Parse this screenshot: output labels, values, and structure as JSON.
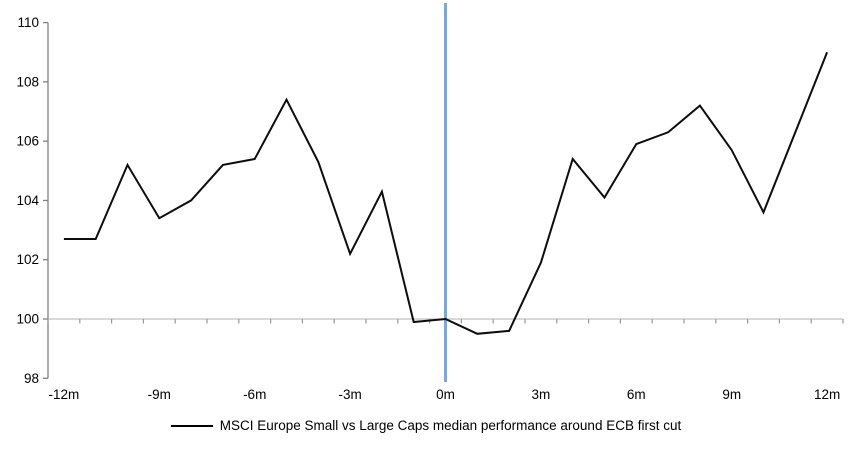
{
  "chart_data": {
    "type": "line",
    "title": "",
    "xlabel": "",
    "ylabel": "",
    "x": [
      -12,
      -11,
      -10,
      -9,
      -8,
      -7,
      -6,
      -5,
      -4,
      -3,
      -2,
      -1,
      0,
      1,
      2,
      3,
      4,
      5,
      6,
      7,
      8,
      9,
      10,
      11,
      12
    ],
    "series": [
      {
        "name": "MSCI Europe Small vs Large Caps median performance around ECB first cut",
        "values": [
          102.7,
          102.7,
          105.2,
          103.4,
          104.0,
          105.2,
          105.4,
          107.4,
          105.3,
          102.2,
          104.3,
          99.9,
          100.0,
          99.5,
          99.6,
          101.9,
          105.4,
          104.1,
          105.9,
          106.3,
          107.2,
          105.7,
          103.6,
          106.3,
          109.0
        ]
      }
    ],
    "ylim": [
      98,
      110
    ],
    "yticks": [
      98,
      100,
      102,
      104,
      106,
      108,
      110
    ],
    "x_tick_labels": [
      {
        "pos": -12,
        "label": "-12m"
      },
      {
        "pos": -9,
        "label": "-9m"
      },
      {
        "pos": -6,
        "label": "-6m"
      },
      {
        "pos": -3,
        "label": "-3m"
      },
      {
        "pos": 0,
        "label": "0m"
      },
      {
        "pos": 3,
        "label": "3m"
      },
      {
        "pos": 6,
        "label": "6m"
      },
      {
        "pos": 9,
        "label": "9m"
      },
      {
        "pos": 12,
        "label": "12m"
      }
    ],
    "baseline_value": 100,
    "event_line_x": 0,
    "grid": "off",
    "legend_position": "bottom-center",
    "colors": {
      "series_line": "#0d0d0d",
      "event_line": "#7ea7d3",
      "y_axis": "#808080",
      "baseline": "#c0c0c0",
      "baseline_ticks": "#999999",
      "text": "#000000",
      "background": "#ffffff"
    }
  },
  "legend": {
    "label": "MSCI Europe Small vs Large Caps median performance around ECB first cut"
  }
}
